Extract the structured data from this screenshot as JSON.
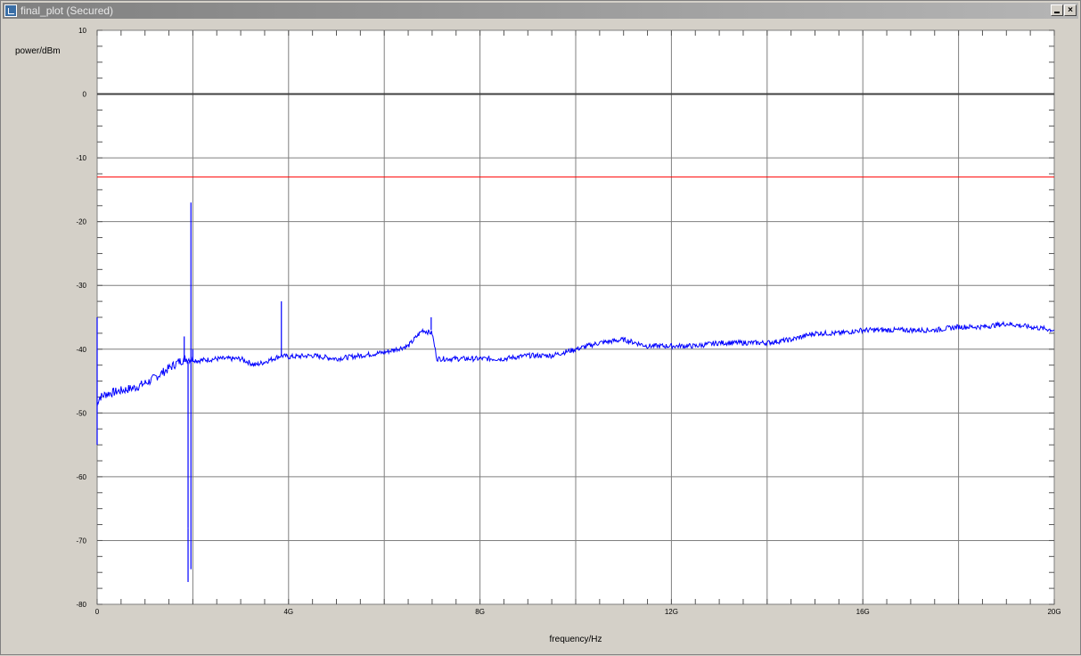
{
  "window": {
    "title": "final_plot (Secured)",
    "app_icon": "plot-app-icon",
    "controls": [
      "minimize-icon",
      "close-icon"
    ]
  },
  "colors": {
    "trace": "#0000ff",
    "limit_line": "#ff0000",
    "zero_line": "#404040",
    "grid": "#7f7f7f",
    "plot_background": "#ffffff",
    "frame_background": "#d4d0c8"
  },
  "chart_data": {
    "type": "line",
    "title": "",
    "xlabel": "frequency/Hz",
    "ylabel": "power/dBm",
    "xlim": [
      0,
      20000000000
    ],
    "ylim": [
      -80,
      10
    ],
    "x_ticks": [
      {
        "value": 0,
        "label": "0"
      },
      {
        "value": 4000000000,
        "label": "4G"
      },
      {
        "value": 8000000000,
        "label": "8G"
      },
      {
        "value": 12000000000,
        "label": "12G"
      },
      {
        "value": 16000000000,
        "label": "16G"
      },
      {
        "value": 20000000000,
        "label": "20G"
      }
    ],
    "y_ticks": [
      10,
      0,
      -10,
      -20,
      -30,
      -40,
      -50,
      -60,
      -70,
      -80
    ],
    "x_gridlines": [
      0,
      2000000000,
      4000000000,
      6000000000,
      8000000000,
      10000000000,
      12000000000,
      14000000000,
      16000000000,
      18000000000,
      20000000000
    ],
    "grid": true,
    "reference_lines": [
      {
        "name": "zero",
        "y": 0,
        "color": "#404040"
      },
      {
        "name": "limit",
        "y": -13,
        "color": "#ff0000"
      }
    ],
    "series": [
      {
        "color": "#0000ff",
        "x": [
          0,
          20000000,
          60000000,
          200000000,
          500000000,
          800000000,
          1100000000,
          1400000000,
          1700000000,
          1850000000,
          1950000000,
          2100000000,
          2500000000,
          3000000000,
          3300000000,
          3500000000,
          3850000000,
          4000000000,
          4500000000,
          5000000000,
          5500000000,
          6000000000,
          6500000000,
          6800000000,
          7000000000,
          7100000000,
          7500000000,
          8000000000,
          8500000000,
          9000000000,
          9500000000,
          10000000000,
          10500000000,
          11000000000,
          11500000000,
          12000000000,
          12500000000,
          13000000000,
          13500000000,
          14000000000,
          14500000000,
          15000000000,
          15500000000,
          16000000000,
          16500000000,
          17000000000,
          17500000000,
          18000000000,
          18500000000,
          19000000000,
          19500000000,
          20000000000
        ],
        "y": [
          -49,
          -48,
          -47.5,
          -47,
          -46.5,
          -46,
          -45,
          -43.5,
          -42,
          -41.5,
          -41.5,
          -41.8,
          -41.5,
          -41.5,
          -42.5,
          -42,
          -41,
          -41.2,
          -41,
          -41.5,
          -41,
          -40.5,
          -39.5,
          -37,
          -37.5,
          -41.5,
          -41.5,
          -41.5,
          -41.5,
          -41,
          -41,
          -40,
          -39,
          -38.5,
          -39.5,
          -39.5,
          -39.5,
          -39,
          -39,
          -39,
          -38.5,
          -37.5,
          -37.5,
          -37,
          -37,
          -37,
          -37,
          -36.5,
          -36.5,
          -36,
          -36.5,
          -37
        ]
      }
    ],
    "spikes": [
      {
        "x": 0,
        "from": -49,
        "to": -35
      },
      {
        "x": 0,
        "from": -49,
        "to": -55
      },
      {
        "x": 1820000000,
        "from": -42,
        "to": -38
      },
      {
        "x": 1900000000,
        "from": -42,
        "to": -68
      },
      {
        "x": 1900000000,
        "from": -68,
        "to": -76.5
      },
      {
        "x": 1960000000,
        "from": -42,
        "to": -17
      },
      {
        "x": 1960000000,
        "from": -42,
        "to": -74.5
      },
      {
        "x": 2000000000,
        "from": -42,
        "to": -40
      },
      {
        "x": 3850000000,
        "from": -41,
        "to": -32.5
      },
      {
        "x": 6980000000,
        "from": -37,
        "to": -35
      }
    ]
  }
}
